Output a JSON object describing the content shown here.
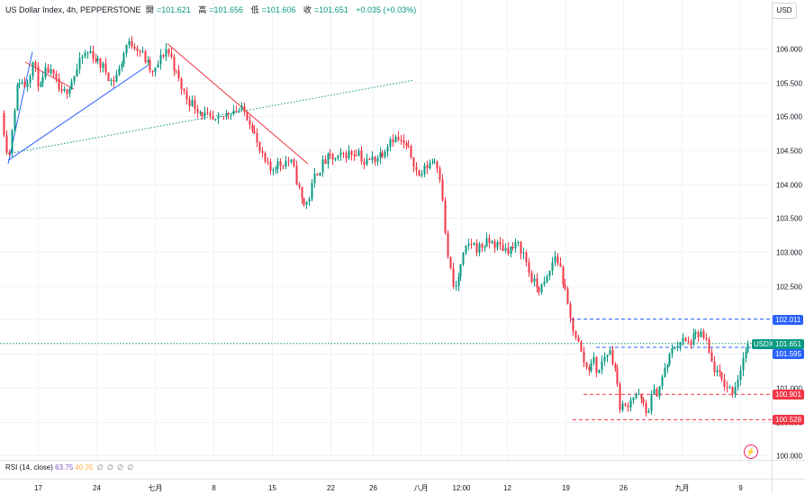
{
  "header": {
    "symbol": "US Dollar Index, 4h, PEPPERSTONE",
    "open_label": "開",
    "open": "=101.621",
    "high_label": "高",
    "high": "=101.656",
    "low_label": "低",
    "low": "=101.606",
    "close_label": "收",
    "close": "=101.651",
    "change": "+0.035 (+0.03%)"
  },
  "currency": "USD",
  "rsi": {
    "label": "RSI (14, close)",
    "value": "63.75",
    "ma": "40.35",
    "other": [
      "∅",
      "∅",
      "∅",
      "∅"
    ]
  },
  "price_tags": {
    "symbol_tag": "USDX",
    "last_price": "101.651",
    "line_blue_upper": "102.011",
    "line_blue_lower": "101.595",
    "line_red_upper": "100.901",
    "line_red_lower": "100.528"
  },
  "chart_data": {
    "type": "candlestick",
    "y_ticks": [
      "106.000",
      "105.500",
      "105.000",
      "104.500",
      "104.000",
      "103.500",
      "103.000",
      "102.500",
      "102.000",
      "101.500",
      "101.000",
      "100.500",
      "100.000"
    ],
    "ylim": [
      99.95,
      106.45
    ],
    "x_ticks": [
      "17",
      "24",
      "七月",
      "8",
      "15",
      "22",
      "26",
      "八月",
      "12:00",
      "12",
      "19",
      "26",
      "九月",
      "9"
    ],
    "colors": {
      "up": "#089981",
      "down": "#f23645"
    },
    "keypoints": [
      [
        0,
        105.3
      ],
      [
        4,
        104.8
      ],
      [
        9,
        104.35
      ],
      [
        14,
        105.0
      ],
      [
        20,
        105.55
      ],
      [
        28,
        105.45
      ],
      [
        36,
        105.8
      ],
      [
        44,
        105.4
      ],
      [
        52,
        105.7
      ],
      [
        60,
        105.55
      ],
      [
        68,
        105.3
      ],
      [
        76,
        105.45
      ],
      [
        84,
        105.65
      ],
      [
        92,
        105.9
      ],
      [
        100,
        105.95
      ],
      [
        108,
        105.8
      ],
      [
        116,
        105.7
      ],
      [
        124,
        105.5
      ],
      [
        132,
        105.7
      ],
      [
        140,
        106.05
      ],
      [
        148,
        106.08
      ],
      [
        156,
        105.95
      ],
      [
        164,
        105.75
      ],
      [
        170,
        105.6
      ],
      [
        176,
        105.8
      ],
      [
        184,
        106.0
      ],
      [
        190,
        105.85
      ],
      [
        196,
        105.6
      ],
      [
        202,
        105.4
      ],
      [
        208,
        105.25
      ],
      [
        216,
        105.15
      ],
      [
        224,
        105.05
      ],
      [
        232,
        104.95
      ],
      [
        240,
        104.9
      ],
      [
        248,
        105.0
      ],
      [
        256,
        105.1
      ],
      [
        264,
        105.1
      ],
      [
        272,
        105.05
      ],
      [
        280,
        104.85
      ],
      [
        286,
        104.55
      ],
      [
        292,
        104.35
      ],
      [
        300,
        104.2
      ],
      [
        306,
        104.3
      ],
      [
        312,
        104.3
      ],
      [
        318,
        104.35
      ],
      [
        324,
        104.3
      ],
      [
        330,
        104.0
      ],
      [
        336,
        103.7
      ],
      [
        342,
        103.75
      ],
      [
        350,
        104.15
      ],
      [
        358,
        104.3
      ],
      [
        366,
        104.4
      ],
      [
        374,
        104.35
      ],
      [
        382,
        104.45
      ],
      [
        390,
        104.45
      ],
      [
        398,
        104.5
      ],
      [
        404,
        104.3
      ],
      [
        410,
        104.35
      ],
      [
        418,
        104.4
      ],
      [
        426,
        104.5
      ],
      [
        434,
        104.7
      ],
      [
        442,
        104.65
      ],
      [
        450,
        104.55
      ],
      [
        458,
        104.4
      ],
      [
        464,
        104.1
      ],
      [
        470,
        104.2
      ],
      [
        478,
        104.35
      ],
      [
        484,
        104.35
      ],
      [
        490,
        104.05
      ],
      [
        494,
        103.25
      ],
      [
        498,
        102.85
      ],
      [
        504,
        102.4
      ],
      [
        510,
        102.7
      ],
      [
        516,
        103.0
      ],
      [
        522,
        103.15
      ],
      [
        530,
        103.05
      ],
      [
        536,
        103.1
      ],
      [
        544,
        103.15
      ],
      [
        552,
        103.1
      ],
      [
        560,
        103.05
      ],
      [
        568,
        103.05
      ],
      [
        576,
        103.1
      ],
      [
        582,
        102.95
      ],
      [
        588,
        102.65
      ],
      [
        594,
        102.5
      ],
      [
        600,
        102.45
      ],
      [
        606,
        102.55
      ],
      [
        612,
        102.8
      ],
      [
        616,
        102.95
      ],
      [
        622,
        102.75
      ],
      [
        628,
        102.35
      ],
      [
        634,
        101.95
      ],
      [
        640,
        101.75
      ],
      [
        646,
        101.45
      ],
      [
        652,
        101.25
      ],
      [
        658,
        101.45
      ],
      [
        664,
        101.2
      ],
      [
        670,
        101.45
      ],
      [
        676,
        101.55
      ],
      [
        682,
        101.35
      ],
      [
        688,
        100.75
      ],
      [
        694,
        100.7
      ],
      [
        700,
        100.85
      ],
      [
        706,
        100.9
      ],
      [
        712,
        100.8
      ],
      [
        718,
        100.6
      ],
      [
        724,
        100.9
      ],
      [
        730,
        100.95
      ],
      [
        736,
        101.2
      ],
      [
        742,
        101.4
      ],
      [
        748,
        101.6
      ],
      [
        756,
        101.7
      ],
      [
        764,
        101.65
      ],
      [
        772,
        101.75
      ],
      [
        778,
        101.8
      ],
      [
        784,
        101.65
      ],
      [
        790,
        101.35
      ],
      [
        796,
        101.2
      ],
      [
        802,
        101.1
      ],
      [
        808,
        101.0
      ],
      [
        814,
        100.95
      ],
      [
        820,
        101.2
      ],
      [
        826,
        101.5
      ],
      [
        832,
        101.651
      ]
    ],
    "drawings": [
      {
        "type": "trendline",
        "color": "#2962ff",
        "from": [
          9,
          104.3
        ],
        "to": [
          36,
          105.95
        ]
      },
      {
        "type": "trendline",
        "color": "#2962ff",
        "from": [
          9,
          104.35
        ],
        "to": [
          164,
          105.75
        ]
      },
      {
        "type": "trendline",
        "color": "#f23645",
        "from": [
          28,
          105.8
        ],
        "to": [
          82,
          105.4
        ]
      },
      {
        "type": "trendline",
        "color": "#f23645",
        "from": [
          186,
          106.07
        ],
        "to": [
          342,
          104.3
        ]
      },
      {
        "type": "trendline-dotted",
        "color": "#089981",
        "from": [
          9,
          104.45
        ],
        "to": [
          458,
          105.53
        ]
      },
      {
        "type": "hline-dashed",
        "color": "#2962ff",
        "value": 102.011,
        "from_x": 634
      },
      {
        "type": "hline-dashed",
        "color": "#2962ff",
        "value": 101.595,
        "from_x": 662
      },
      {
        "type": "hline-dashed",
        "color": "#f23645",
        "value": 100.901,
        "from_x": 648
      },
      {
        "type": "hline-dashed",
        "color": "#f23645",
        "value": 100.528,
        "from_x": 636
      },
      {
        "type": "hline-dotted",
        "color": "#089981",
        "value": 101.651,
        "from_x": 0
      }
    ]
  }
}
